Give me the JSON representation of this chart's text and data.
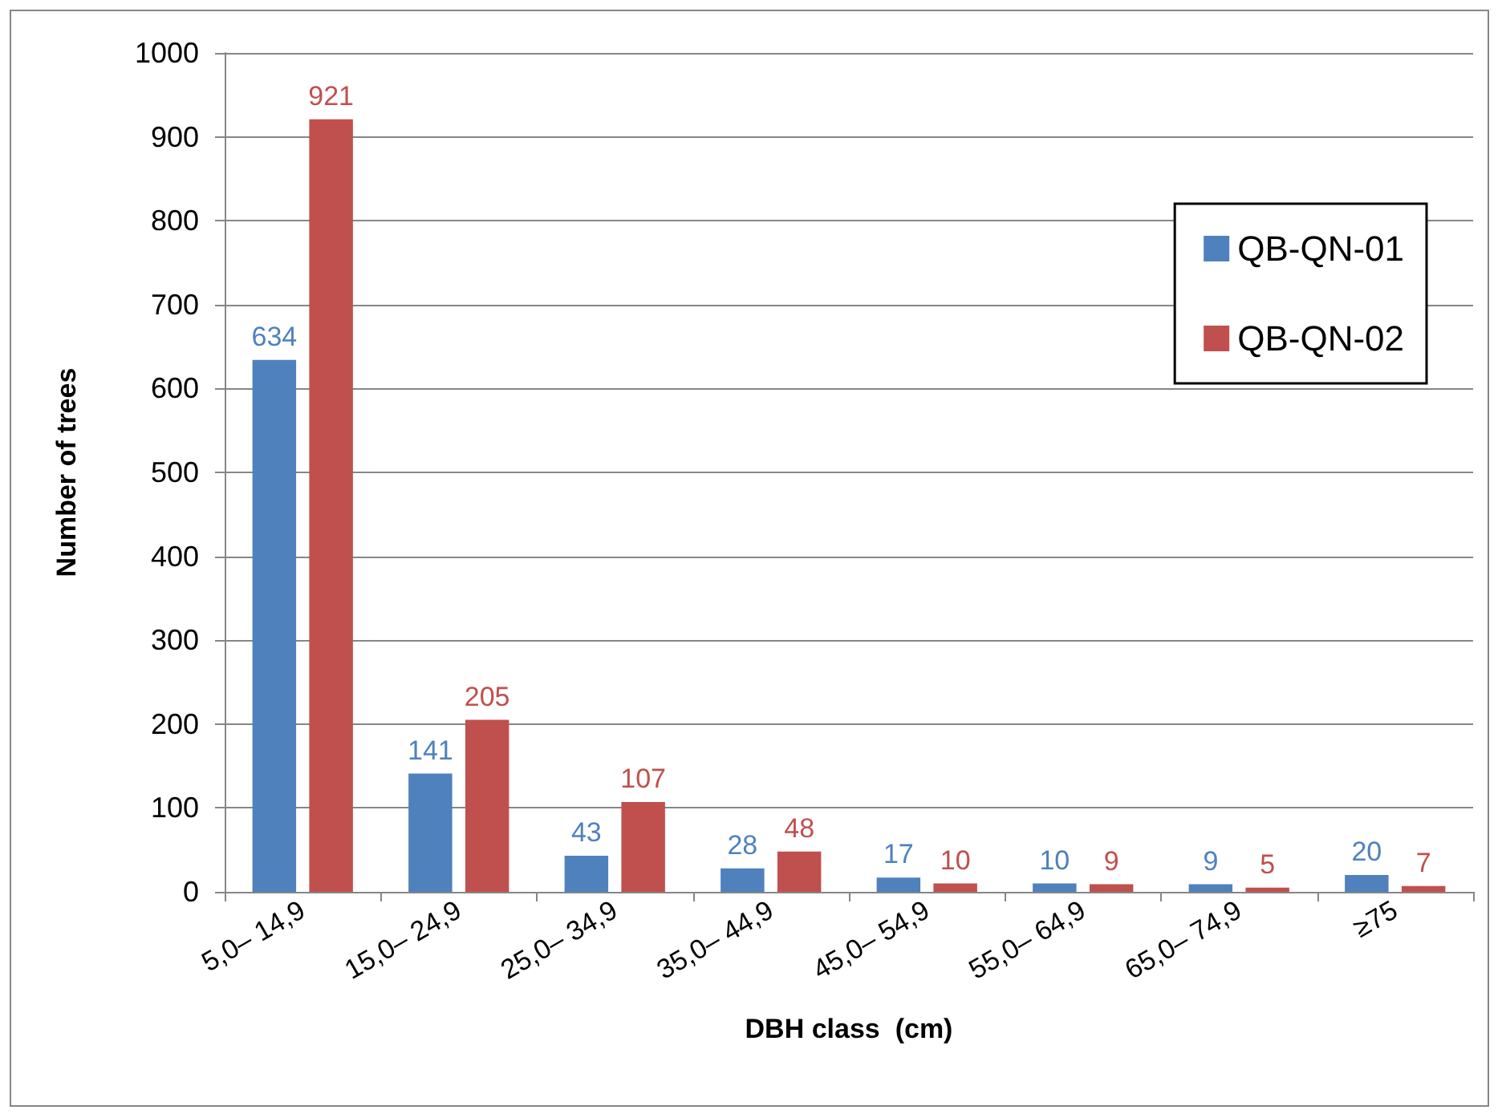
{
  "chart_data": {
    "type": "bar",
    "xlabel": "DBH class  (cm)",
    "ylabel": "Number of trees",
    "categories": [
      "5,0– 14,9",
      "15,0– 24,9",
      "25,0– 34,9",
      "35,0– 44,9",
      "45,0– 54,9",
      "55,0– 64,9",
      "65,0– 74,9",
      "≥75"
    ],
    "series": [
      {
        "name": "QB-QN-01",
        "color": "#4f81bd",
        "values": [
          634,
          141,
          43,
          28,
          17,
          10,
          9,
          20
        ]
      },
      {
        "name": "QB-QN-02",
        "color": "#c0504d",
        "values": [
          921,
          205,
          107,
          48,
          10,
          9,
          5,
          7
        ]
      }
    ],
    "ylim": [
      0,
      1000
    ],
    "yticks": [
      0,
      100,
      200,
      300,
      400,
      500,
      600,
      700,
      800,
      900,
      1000
    ],
    "grid": "y",
    "legend": "top right",
    "data_labels": true
  }
}
